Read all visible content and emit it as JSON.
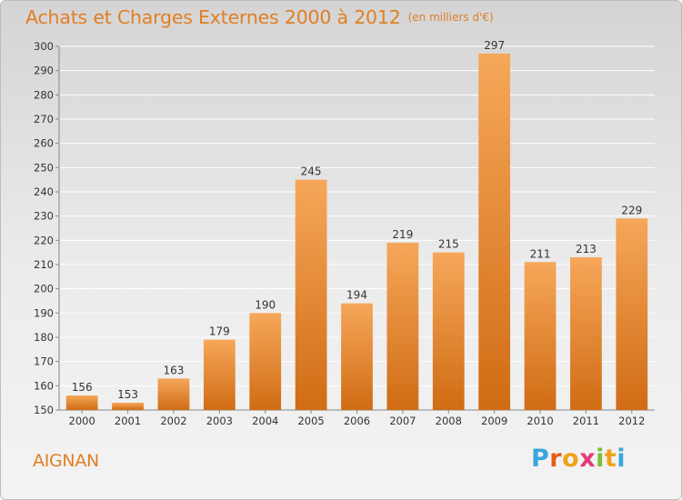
{
  "title": "Achats et Charges Externes 2000 à 2012",
  "subtitle": "(en milliers d'€)",
  "commune": "AIGNAN",
  "logo": {
    "letters": [
      "P",
      "r",
      "o",
      "x",
      "i",
      "t",
      "i"
    ],
    "colors": [
      "#3aa6dd",
      "#e85c1a",
      "#f0a21a",
      "#e23a7a",
      "#7bbf3a",
      "#f0a21a",
      "#3aa6dd"
    ]
  },
  "colors": {
    "bar_light": "#f6a75a",
    "bar_dark": "#d06c14",
    "accent": "#e07f25"
  },
  "chart_data": {
    "type": "bar",
    "categories": [
      "2000",
      "2001",
      "2002",
      "2003",
      "2004",
      "2005",
      "2006",
      "2007",
      "2008",
      "2009",
      "2010",
      "2011",
      "2012"
    ],
    "values": [
      156,
      153,
      163,
      179,
      190,
      245,
      194,
      219,
      215,
      297,
      211,
      213,
      229
    ],
    "ylim": [
      150,
      300
    ],
    "yticks": [
      150,
      160,
      170,
      180,
      190,
      200,
      210,
      220,
      230,
      240,
      250,
      260,
      270,
      280,
      290,
      300
    ],
    "grid": true,
    "data_labels": true
  }
}
